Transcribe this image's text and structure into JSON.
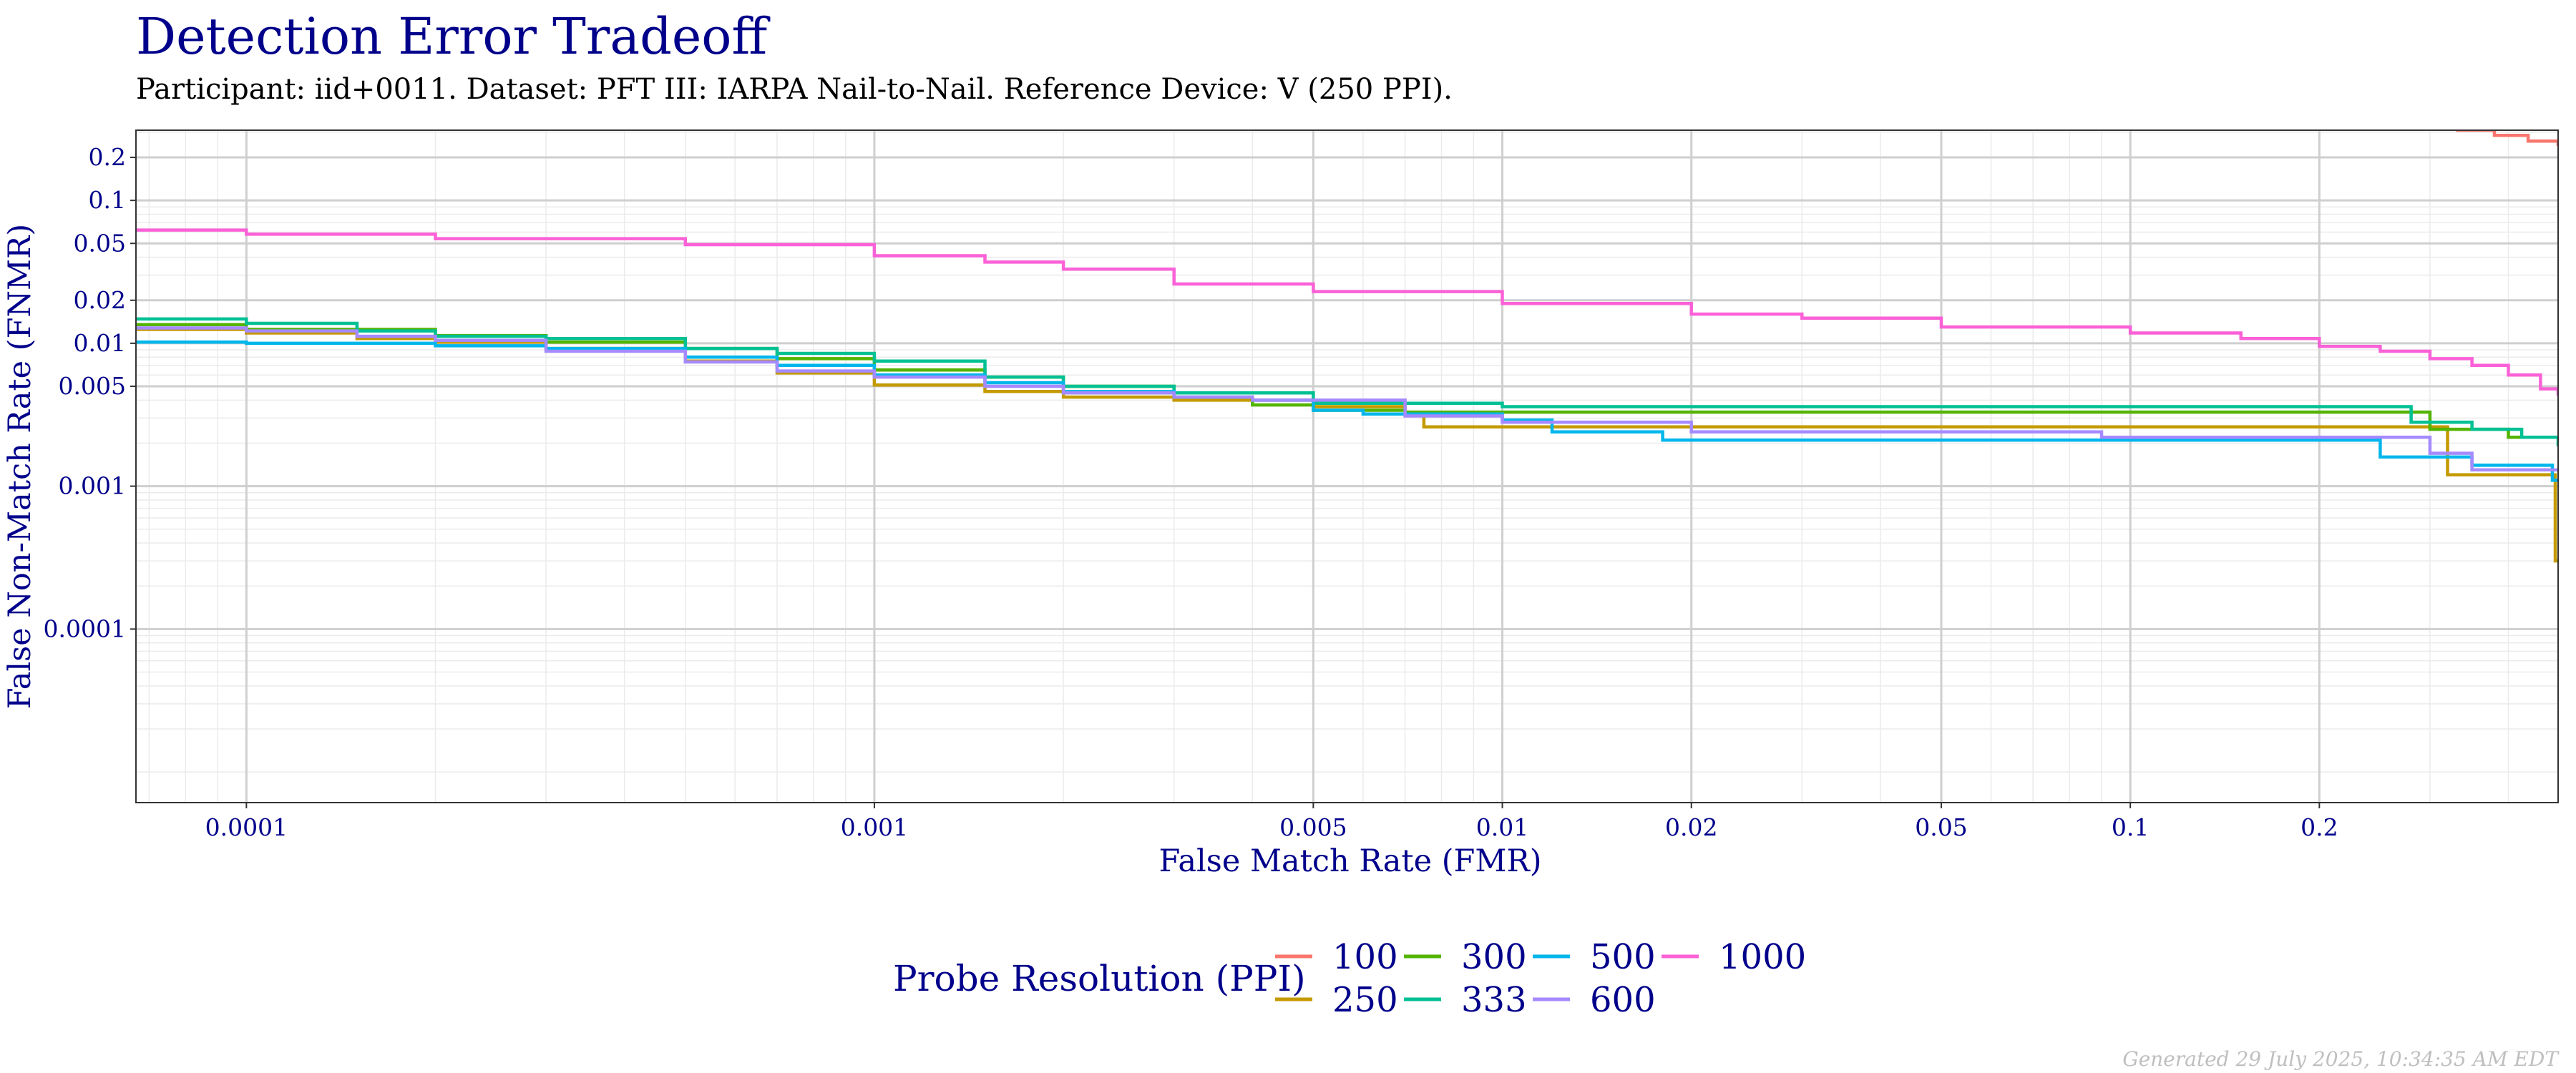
{
  "chart_data": {
    "type": "line",
    "title": "Detection Error Tradeoff",
    "subtitle": "Participant: iid+0011. Dataset: PFT III: IARPA Nail-to-Nail. Reference Device: V (250 PPI).",
    "xlabel": "False Match Rate (FMR)",
    "ylabel": "False Non-Match Rate (FNMR)",
    "xscale": "log",
    "yscale": "log",
    "xlim": [
      6.67e-05,
      0.48
    ],
    "ylim": [
      6.1e-06,
      0.31
    ],
    "xticks": [
      {
        "value": 0.0001,
        "label": "0.0001"
      },
      {
        "value": 0.001,
        "label": "0.001"
      },
      {
        "value": 0.005,
        "label": "0.005"
      },
      {
        "value": 0.01,
        "label": "0.01"
      },
      {
        "value": 0.02,
        "label": "0.02"
      },
      {
        "value": 0.05,
        "label": "0.05"
      },
      {
        "value": 0.1,
        "label": "0.1"
      },
      {
        "value": 0.2,
        "label": "0.2"
      }
    ],
    "yticks": [
      {
        "value": 0.0001,
        "label": "0.0001"
      },
      {
        "value": 0.001,
        "label": "0.001"
      },
      {
        "value": 0.005,
        "label": "0.005"
      },
      {
        "value": 0.01,
        "label": "0.01"
      },
      {
        "value": 0.02,
        "label": "0.02"
      },
      {
        "value": 0.05,
        "label": "0.05"
      },
      {
        "value": 0.1,
        "label": "0.1"
      },
      {
        "value": 0.2,
        "label": "0.2"
      }
    ],
    "legend_title": "Probe Resolution (PPI)",
    "legend_position": "bottom",
    "series": [
      {
        "name": "100",
        "color": "#F8766D",
        "points": [
          [
            0.33,
            0.31
          ],
          [
            0.38,
            0.285
          ],
          [
            0.43,
            0.26
          ],
          [
            0.48,
            0.24
          ]
        ]
      },
      {
        "name": "250",
        "color": "#C49A00",
        "points": [
          [
            6.67e-05,
            0.0125
          ],
          [
            0.0001,
            0.0118
          ],
          [
            0.00015,
            0.0108
          ],
          [
            0.0002,
            0.0102
          ],
          [
            0.0003,
            0.0092
          ],
          [
            0.0005,
            0.0075
          ],
          [
            0.0007,
            0.0062
          ],
          [
            0.001,
            0.0051
          ],
          [
            0.0015,
            0.0046
          ],
          [
            0.002,
            0.0042
          ],
          [
            0.003,
            0.004
          ],
          [
            0.005,
            0.0036
          ],
          [
            0.007,
            0.0032
          ],
          [
            0.0075,
            0.0026
          ],
          [
            0.01,
            0.0026
          ],
          [
            0.3,
            0.0026
          ],
          [
            0.32,
            0.0012
          ],
          [
            0.47,
            0.0012
          ],
          [
            0.475,
            0.0003
          ],
          [
            0.48,
            0.0003
          ]
        ]
      },
      {
        "name": "300",
        "color": "#53B400",
        "points": [
          [
            6.67e-05,
            0.0135
          ],
          [
            0.0001,
            0.0125
          ],
          [
            0.0002,
            0.0113
          ],
          [
            0.0003,
            0.0102
          ],
          [
            0.0005,
            0.0092
          ],
          [
            0.0007,
            0.0078
          ],
          [
            0.001,
            0.0065
          ],
          [
            0.0015,
            0.0058
          ],
          [
            0.002,
            0.005
          ],
          [
            0.003,
            0.0042
          ],
          [
            0.004,
            0.0037
          ],
          [
            0.005,
            0.0034
          ],
          [
            0.007,
            0.0033
          ],
          [
            0.25,
            0.0033
          ],
          [
            0.3,
            0.0025
          ],
          [
            0.4,
            0.0022
          ],
          [
            0.48,
            0.0022
          ]
        ]
      },
      {
        "name": "333",
        "color": "#00C094",
        "points": [
          [
            6.67e-05,
            0.0148
          ],
          [
            0.0001,
            0.0138
          ],
          [
            0.00015,
            0.0122
          ],
          [
            0.0002,
            0.0112
          ],
          [
            0.0003,
            0.0108
          ],
          [
            0.0005,
            0.0092
          ],
          [
            0.0007,
            0.0085
          ],
          [
            0.001,
            0.0075
          ],
          [
            0.0015,
            0.0058
          ],
          [
            0.002,
            0.005
          ],
          [
            0.003,
            0.0045
          ],
          [
            0.005,
            0.0038
          ],
          [
            0.01,
            0.0036
          ],
          [
            0.012,
            0.0036
          ],
          [
            0.24,
            0.0036
          ],
          [
            0.28,
            0.0028
          ],
          [
            0.35,
            0.0025
          ],
          [
            0.42,
            0.0022
          ],
          [
            0.48,
            0.0019
          ]
        ]
      },
      {
        "name": "500",
        "color": "#00B6EB",
        "points": [
          [
            6.67e-05,
            0.0102
          ],
          [
            0.0001,
            0.01
          ],
          [
            0.00015,
            0.01
          ],
          [
            0.0002,
            0.0096
          ],
          [
            0.0003,
            0.0092
          ],
          [
            0.0005,
            0.008
          ],
          [
            0.0007,
            0.007
          ],
          [
            0.001,
            0.006
          ],
          [
            0.0015,
            0.0053
          ],
          [
            0.002,
            0.0046
          ],
          [
            0.003,
            0.0042
          ],
          [
            0.004,
            0.004
          ],
          [
            0.005,
            0.0034
          ],
          [
            0.006,
            0.0032
          ],
          [
            0.01,
            0.0029
          ],
          [
            0.012,
            0.0024
          ],
          [
            0.018,
            0.0021
          ],
          [
            0.23,
            0.0021
          ],
          [
            0.25,
            0.0016
          ],
          [
            0.3,
            0.0016
          ],
          [
            0.35,
            0.0014
          ],
          [
            0.45,
            0.0014
          ],
          [
            0.47,
            0.0011
          ],
          [
            0.48,
            0.0011
          ]
        ]
      },
      {
        "name": "600",
        "color": "#A58AFF",
        "points": [
          [
            6.67e-05,
            0.0128
          ],
          [
            0.0001,
            0.0122
          ],
          [
            0.00015,
            0.0112
          ],
          [
            0.0002,
            0.0105
          ],
          [
            0.0003,
            0.0088
          ],
          [
            0.0005,
            0.0074
          ],
          [
            0.0007,
            0.0064
          ],
          [
            0.001,
            0.0058
          ],
          [
            0.0015,
            0.005
          ],
          [
            0.002,
            0.0045
          ],
          [
            0.003,
            0.0042
          ],
          [
            0.004,
            0.004
          ],
          [
            0.007,
            0.0031
          ],
          [
            0.01,
            0.0028
          ],
          [
            0.012,
            0.0028
          ],
          [
            0.02,
            0.0024
          ],
          [
            0.09,
            0.0022
          ],
          [
            0.25,
            0.0022
          ],
          [
            0.3,
            0.0017
          ],
          [
            0.35,
            0.0013
          ],
          [
            0.45,
            0.0013
          ],
          [
            0.48,
            0.0013
          ]
        ]
      },
      {
        "name": "1000",
        "color": "#FB61D7",
        "points": [
          [
            6.67e-05,
            0.062
          ],
          [
            0.0001,
            0.058
          ],
          [
            0.0002,
            0.054
          ],
          [
            0.0005,
            0.049
          ],
          [
            0.001,
            0.041
          ],
          [
            0.0015,
            0.037
          ],
          [
            0.002,
            0.033
          ],
          [
            0.003,
            0.026
          ],
          [
            0.005,
            0.023
          ],
          [
            0.01,
            0.019
          ],
          [
            0.02,
            0.016
          ],
          [
            0.03,
            0.015
          ],
          [
            0.05,
            0.013
          ],
          [
            0.1,
            0.0118
          ],
          [
            0.15,
            0.0108
          ],
          [
            0.2,
            0.0095
          ],
          [
            0.25,
            0.0088
          ],
          [
            0.3,
            0.0078
          ],
          [
            0.35,
            0.007
          ],
          [
            0.4,
            0.006
          ],
          [
            0.45,
            0.0048
          ],
          [
            0.48,
            0.0043
          ]
        ]
      }
    ]
  },
  "footer": "Generated 29 July 2025, 10:34:35 AM EDT"
}
